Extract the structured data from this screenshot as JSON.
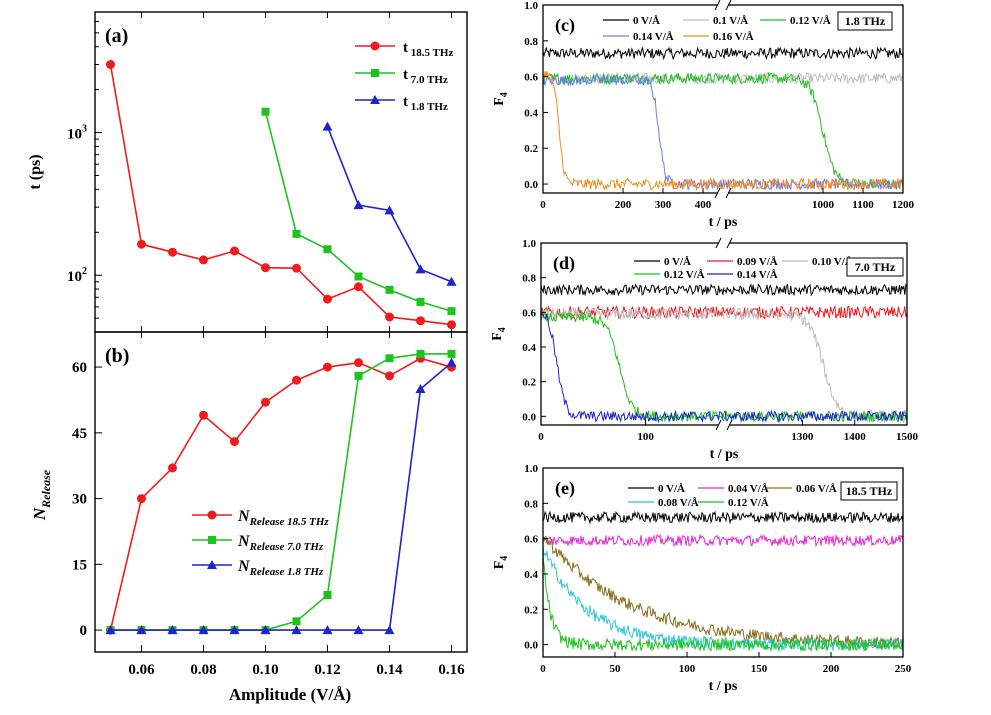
{
  "chart_data": [
    {
      "id": "a",
      "type": "line",
      "panel_label": "(a)",
      "ylabel": "t (ps)",
      "yscale": "log",
      "ylim": [
        40,
        7000
      ],
      "xlim": [
        0.045,
        0.165
      ],
      "yticks": [
        {
          "value": 100,
          "label": "10",
          "exp": "2"
        },
        {
          "value": 1000,
          "label": "10",
          "exp": "3"
        }
      ],
      "series": [
        {
          "name": "t",
          "sub": "18.5 THz",
          "color": "#ee1c1c",
          "marker": "circle",
          "x": [
            0.05,
            0.06,
            0.07,
            0.08,
            0.09,
            0.1,
            0.11,
            0.12,
            0.13,
            0.14,
            0.15,
            0.16
          ],
          "y": [
            3000,
            165,
            145,
            128,
            148,
            113,
            112,
            68,
            83,
            51,
            48,
            45
          ]
        },
        {
          "name": "t",
          "sub": "7.0 THz",
          "color": "#1ec21e",
          "marker": "square",
          "x": [
            0.1,
            0.11,
            0.12,
            0.13,
            0.14,
            0.15,
            0.16
          ],
          "y": [
            1400,
            195,
            152,
            98,
            79,
            65,
            56
          ]
        },
        {
          "name": "t",
          "sub": "1.8 THz",
          "color": "#1f23c8",
          "marker": "triangle",
          "x": [
            0.12,
            0.13,
            0.14,
            0.15,
            0.16
          ],
          "y": [
            1100,
            310,
            285,
            110,
            90
          ]
        }
      ]
    },
    {
      "id": "b",
      "type": "line",
      "panel_label": "(b)",
      "xlabel": "Amplitude  (V/Å)",
      "ylabel_main": "N",
      "ylabel_sub": "Release",
      "xlim": [
        0.045,
        0.165
      ],
      "ylim": [
        -5,
        68
      ],
      "xticks": [
        0.06,
        0.08,
        0.1,
        0.12,
        0.14,
        0.16
      ],
      "xtick_labels": [
        "0.06",
        "0.08",
        "0.10",
        "0.12",
        "0.14",
        "0.16"
      ],
      "yticks": [
        0,
        15,
        30,
        45,
        60
      ],
      "series": [
        {
          "name": "N",
          "sub": "Release 18.5 THz",
          "color": "#ee1c1c",
          "marker": "circle",
          "x": [
            0.05,
            0.06,
            0.07,
            0.08,
            0.09,
            0.1,
            0.11,
            0.12,
            0.13,
            0.14,
            0.15,
            0.16
          ],
          "y": [
            0,
            30,
            37,
            49,
            43,
            52,
            57,
            60,
            61,
            58,
            62,
            60
          ]
        },
        {
          "name": "N",
          "sub": "Release 7.0  THz",
          "color": "#1ec21e",
          "marker": "square",
          "x": [
            0.05,
            0.06,
            0.07,
            0.08,
            0.09,
            0.1,
            0.11,
            0.12,
            0.13,
            0.14,
            0.15,
            0.16
          ],
          "y": [
            0,
            0,
            0,
            0,
            0,
            0,
            2,
            8,
            58,
            62,
            63,
            63
          ]
        },
        {
          "name": "N",
          "sub": "Release 1.8  THz",
          "color": "#1f23c8",
          "marker": "triangle",
          "x": [
            0.05,
            0.06,
            0.07,
            0.08,
            0.09,
            0.1,
            0.11,
            0.12,
            0.13,
            0.14,
            0.15,
            0.16
          ],
          "y": [
            0,
            0,
            0,
            0,
            0,
            0,
            0,
            0,
            0,
            0,
            55,
            61
          ]
        }
      ]
    },
    {
      "id": "c",
      "type": "line",
      "panel_label": "(c)",
      "freq_label": "1.8 THz",
      "xlabel": "t / ps",
      "ylabel_main": "F",
      "ylabel_sub": "4",
      "ylim": [
        -0.05,
        1.0
      ],
      "yticks": [
        0.0,
        0.2,
        0.4,
        0.6,
        0.8,
        1.0
      ],
      "ytick_labels": [
        "0.0",
        "0.2",
        "0.4",
        "0.6",
        "0.8",
        "1.0"
      ],
      "x_segments": [
        {
          "from": 0,
          "to": 450
        },
        {
          "from": 750,
          "to": 1200
        }
      ],
      "xticks": [
        0,
        200,
        300,
        400,
        1000,
        1100,
        1200
      ],
      "series": [
        {
          "name": "0 V/Å",
          "color": "#000000",
          "plateau": 0.73,
          "noise": 0.03,
          "t_drop": null
        },
        {
          "name": "0.1 V/Å",
          "color": "#bdbdbd",
          "plateau": 0.59,
          "noise": 0.03,
          "t_drop": null
        },
        {
          "name": "0.12 V/Å",
          "color": "#1ec21e",
          "plateau": 0.59,
          "noise": 0.03,
          "t_drop": 1000,
          "width": 90
        },
        {
          "name": "0.14 V/Å",
          "color": "#6b7bf0",
          "plateau": 0.58,
          "noise": 0.03,
          "t_drop": 290,
          "width": 45
        },
        {
          "name": "0.16 V/Å",
          "color": "#f28a1c",
          "plateau": 0.62,
          "noise": 0.03,
          "t_drop": 40,
          "width": 40
        }
      ]
    },
    {
      "id": "d",
      "type": "line",
      "panel_label": "(d)",
      "freq_label": "7.0 THz",
      "xlabel": "t / ps",
      "ylabel_main": "F",
      "ylabel_sub": "4",
      "ylim": [
        -0.05,
        1.0
      ],
      "yticks": [
        0.0,
        0.2,
        0.4,
        0.6,
        0.8,
        1.0
      ],
      "ytick_labels": [
        "0.0",
        "0.2",
        "0.4",
        "0.6",
        "0.8",
        "1.0"
      ],
      "x_segments": [
        {
          "from": 0,
          "to": 175
        },
        {
          "from": 1150,
          "to": 1500
        }
      ],
      "xticks": [
        0,
        100,
        1300,
        1400,
        1500
      ],
      "series": [
        {
          "name": "0 V/Å",
          "color": "#000000",
          "plateau": 0.73,
          "noise": 0.03,
          "t_drop": null
        },
        {
          "name": "0.09 V/Å",
          "color": "#ee1c1c",
          "plateau": 0.6,
          "noise": 0.035,
          "t_drop": null
        },
        {
          "name": "0.10 V/Å",
          "color": "#bdbdbd",
          "plateau": 0.59,
          "noise": 0.035,
          "t_drop": 1340,
          "width": 80
        },
        {
          "name": "0.12 V/Å",
          "color": "#1ec21e",
          "plateau": 0.57,
          "noise": 0.03,
          "t_drop": 75,
          "width": 35
        },
        {
          "name": "0.14 V/Å",
          "color": "#1f23c8",
          "plateau": 0.62,
          "noise": 0.03,
          "t_drop": 15,
          "width": 25
        }
      ]
    },
    {
      "id": "e",
      "type": "line",
      "panel_label": "(e)",
      "freq_label": "18.5 THz",
      "xlabel": "t / ps",
      "ylabel_main": "F",
      "ylabel_sub": "4",
      "xlim": [
        0,
        250
      ],
      "ylim": [
        -0.07,
        1.0
      ],
      "yticks": [
        0.0,
        0.2,
        0.4,
        0.6,
        0.8,
        1.0
      ],
      "ytick_labels": [
        "0.0",
        "0.2",
        "0.4",
        "0.6",
        "0.8",
        "1.0"
      ],
      "xticks": [
        0,
        50,
        100,
        150,
        200,
        250
      ],
      "series": [
        {
          "name": "0 V/Å",
          "color": "#000000",
          "plateau": 0.72,
          "noise": 0.03,
          "decay": null
        },
        {
          "name": "0.04 V/Å",
          "color": "#e22ad8",
          "plateau": 0.59,
          "noise": 0.03,
          "decay": null
        },
        {
          "name": "0.06 V/Å",
          "color": "#8a6d1e",
          "plateau": 0.62,
          "noise": 0.035,
          "decay": 60
        },
        {
          "name": "0.08 V/Å",
          "color": "#2ec7d6",
          "plateau": 0.55,
          "noise": 0.035,
          "decay": 30
        },
        {
          "name": "0.12 V/Å",
          "color": "#1ec21e",
          "plateau": 0.5,
          "noise": 0.035,
          "decay": 5
        }
      ]
    }
  ]
}
